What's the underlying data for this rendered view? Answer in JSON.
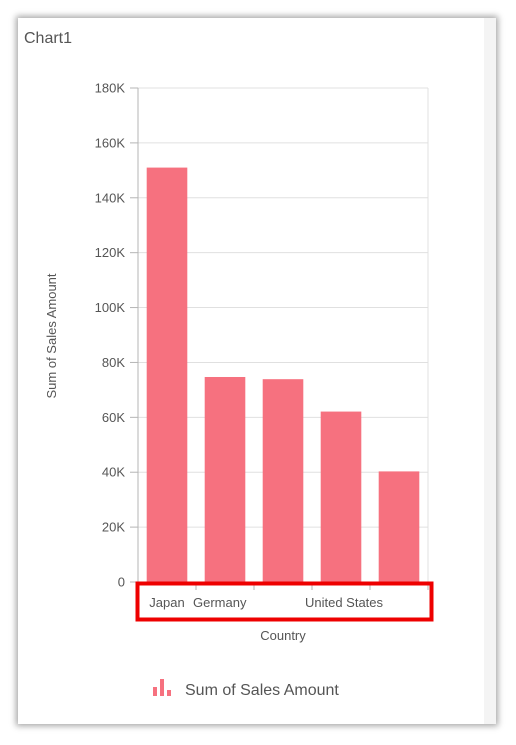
{
  "title": "Chart1",
  "chart_data": {
    "type": "bar",
    "categories": [
      "Japan",
      "Germany",
      "",
      "United States",
      ""
    ],
    "series": [
      {
        "name": "Sum of Sales Amount",
        "values": [
          151000,
          74700,
          73900,
          62100,
          40300
        ]
      }
    ],
    "ylabel": "Sum of Sales Amount",
    "xlabel": "Country",
    "ylim": [
      0,
      180000
    ],
    "yticks": [
      "0",
      "20K",
      "40K",
      "60K",
      "80K",
      "100K",
      "120K",
      "140K",
      "160K",
      "180K"
    ],
    "grid": true,
    "legend": "bottom",
    "color": "#f6717f"
  },
  "highlight_color": "#ee0000"
}
